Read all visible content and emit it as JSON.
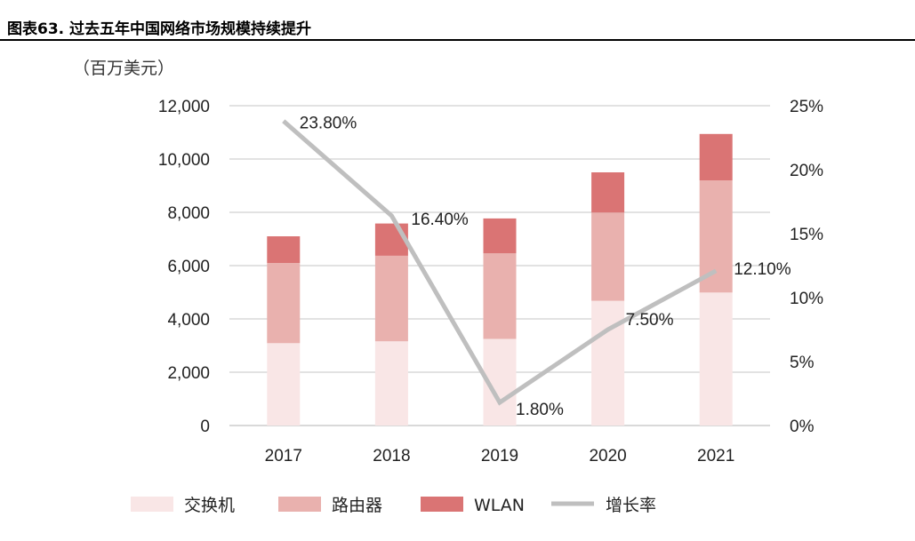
{
  "title": "图表63. 过去五年中国网络市场规模持续提升",
  "chart_data": {
    "type": "bar+line",
    "title": "图表63. 过去五年中国网络市场规模持续提升",
    "unit_label": "（百万美元）",
    "categories": [
      "2017",
      "2018",
      "2019",
      "2020",
      "2021"
    ],
    "series": [
      {
        "name": "交换机",
        "type": "stacked-bar",
        "axis": "left",
        "color": "#f9e6e6",
        "values": [
          3090,
          3160,
          3250,
          4680,
          4990
        ]
      },
      {
        "name": "路由器",
        "type": "stacked-bar",
        "axis": "left",
        "color": "#e9b1ae",
        "values": [
          3010,
          3210,
          3210,
          3310,
          4210
        ]
      },
      {
        "name": "WLAN",
        "type": "stacked-bar",
        "axis": "left",
        "color": "#da7474",
        "values": [
          1000,
          1210,
          1310,
          1510,
          1740
        ]
      },
      {
        "name": "增长率",
        "type": "line",
        "axis": "right",
        "color": "#bfbfbf",
        "values": [
          23.8,
          16.4,
          1.8,
          7.5,
          12.1
        ],
        "labels": [
          "23.80%",
          "16.40%",
          "1.80%",
          "7.50%",
          "12.10%"
        ]
      }
    ],
    "y_left": {
      "range": [
        0,
        12000
      ],
      "ticks": [
        "0",
        "2,000",
        "4,000",
        "6,000",
        "8,000",
        "10,000",
        "12,000"
      ]
    },
    "y_right": {
      "range": [
        0,
        25
      ],
      "ticks": [
        "0%",
        "5%",
        "10%",
        "15%",
        "20%",
        "25%"
      ]
    },
    "grid": true,
    "legend": "bottom"
  }
}
